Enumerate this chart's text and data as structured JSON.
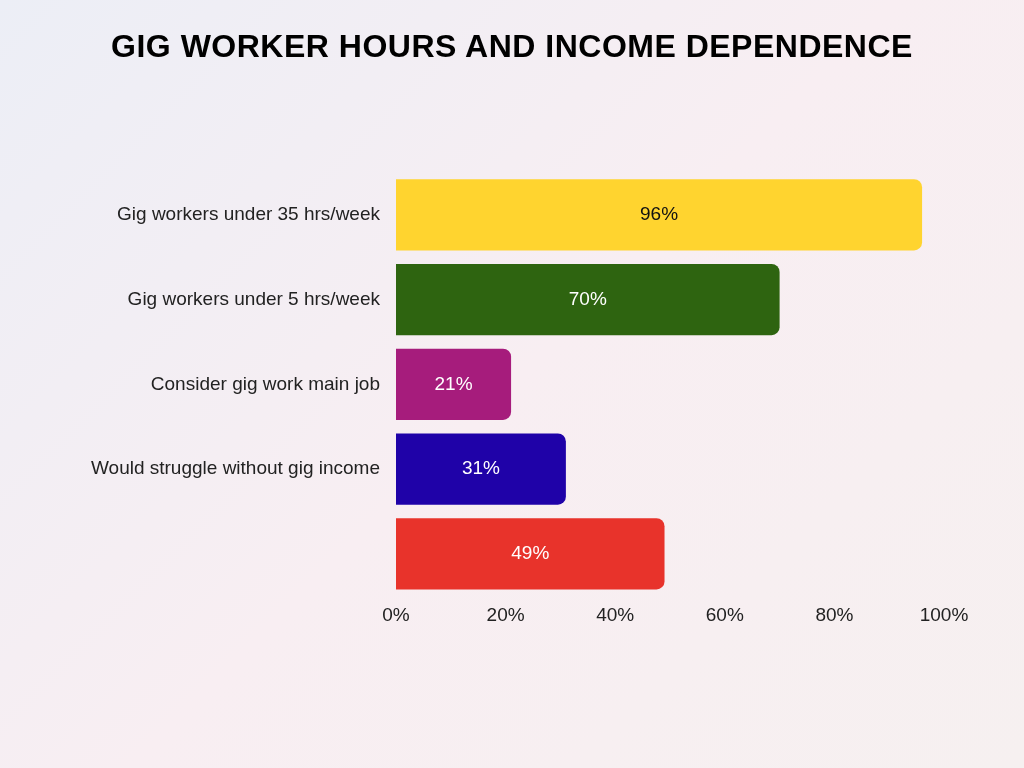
{
  "chart_data": {
    "type": "bar",
    "orientation": "horizontal",
    "title": "GIG WORKER HOURS AND INCOME DEPENDENCE",
    "categories": [
      "Gig workers under 35 hrs/week",
      "Gig workers under 5 hrs/week",
      "Consider gig work main job",
      "Would struggle without gig income",
      null
    ],
    "values": [
      96,
      70,
      21,
      31,
      49
    ],
    "colors": [
      "#ffd42f",
      "#2e6410",
      "#a61c7c",
      "#1f02a8",
      "#e8332b"
    ],
    "value_labels": [
      "96%",
      "70%",
      "21%",
      "31%",
      "49%"
    ],
    "xlim": [
      0,
      100
    ],
    "xticks": [
      {
        "value": 0,
        "label": "0%"
      },
      {
        "value": 20,
        "label": "20%"
      },
      {
        "value": 40,
        "label": "40%"
      },
      {
        "value": 60,
        "label": "60%"
      },
      {
        "value": 80,
        "label": "80%"
      },
      {
        "value": 100,
        "label": "100%"
      }
    ],
    "grid": false,
    "legend": false
  }
}
